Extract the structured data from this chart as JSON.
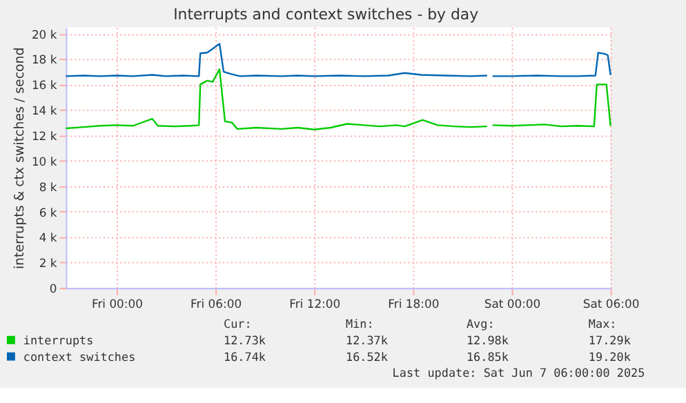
{
  "chart_data": {
    "type": "line",
    "title": "Interrupts and context switches - by day",
    "ylabel": "interrupts & ctx switches / second",
    "xlim": [
      "2025-06-05T20:55",
      "2025-06-07T06:00"
    ],
    "xticks": [
      {
        "value": "2025-06-06T00:00",
        "label": "Fri 00:00"
      },
      {
        "value": "2025-06-06T06:00",
        "label": "Fri 06:00"
      },
      {
        "value": "2025-06-06T12:00",
        "label": "Fri 12:00"
      },
      {
        "value": "2025-06-06T18:00",
        "label": "Fri 18:00"
      },
      {
        "value": "2025-06-07T00:00",
        "label": "Sat 00:00"
      },
      {
        "value": "2025-06-07T06:00",
        "label": "Sat 06:00"
      }
    ],
    "ylim": [
      0,
      20500
    ],
    "yticks": [
      {
        "value": 0,
        "label": "0"
      },
      {
        "value": 2000,
        "label": "2 k"
      },
      {
        "value": 4000,
        "label": "4 k"
      },
      {
        "value": 6000,
        "label": "6 k"
      },
      {
        "value": 8000,
        "label": "8 k"
      },
      {
        "value": 10000,
        "label": "10 k"
      },
      {
        "value": 12000,
        "label": "12 k"
      },
      {
        "value": 14000,
        "label": "14 k"
      },
      {
        "value": 16000,
        "label": "16 k"
      },
      {
        "value": 18000,
        "label": "18 k"
      },
      {
        "value": 20000,
        "label": "20 k"
      }
    ],
    "grid": true,
    "legend": "bottom",
    "marker": "none",
    "line_style": "solid",
    "series": [
      {
        "name": "interrupts",
        "color": "#00cc00",
        "x": [
          "2025-06-05T20:55",
          "2025-06-05T22:00",
          "2025-06-05T23:00",
          "2025-06-06T00:00",
          "2025-06-06T01:00",
          "2025-06-06T02:10",
          "2025-06-06T02:30",
          "2025-06-06T03:30",
          "2025-06-06T04:30",
          "2025-06-06T05:00",
          "2025-06-06T05:05",
          "2025-06-06T05:30",
          "2025-06-06T05:50",
          "2025-06-06T06:15",
          "2025-06-06T06:35",
          "2025-06-06T07:00",
          "2025-06-06T07:20",
          "2025-06-06T08:30",
          "2025-06-06T10:00",
          "2025-06-06T11:00",
          "2025-06-06T12:00",
          "2025-06-06T13:00",
          "2025-06-06T14:00",
          "2025-06-06T15:00",
          "2025-06-06T16:00",
          "2025-06-06T17:00",
          "2025-06-06T17:30",
          "2025-06-06T18:35",
          "2025-06-06T19:30",
          "2025-06-06T20:30",
          "2025-06-06T21:30",
          "2025-06-06T22:30",
          "2025-06-06T22:40",
          "2025-06-06T22:50",
          "2025-06-07T00:00",
          "2025-06-07T01:00",
          "2025-06-07T02:00",
          "2025-06-07T03:00",
          "2025-06-07T04:00",
          "2025-06-07T05:00",
          "2025-06-07T05:10",
          "2025-06-07T05:45",
          "2025-06-07T06:00"
        ],
        "values": [
          12550,
          12650,
          12750,
          12800,
          12750,
          13300,
          12750,
          12700,
          12750,
          12800,
          16000,
          16300,
          16200,
          17200,
          13100,
          13000,
          12500,
          12600,
          12500,
          12600,
          12450,
          12600,
          12900,
          12800,
          12700,
          12800,
          12700,
          13200,
          12800,
          12700,
          12650,
          12700,
          null,
          12800,
          12750,
          12800,
          12850,
          12700,
          12750,
          12700,
          16000,
          16000,
          12730
        ]
      },
      {
        "name": "context switches",
        "color": "#0066b3",
        "x": [
          "2025-06-05T20:55",
          "2025-06-05T22:00",
          "2025-06-05T23:00",
          "2025-06-06T00:00",
          "2025-06-06T01:00",
          "2025-06-06T02:10",
          "2025-06-06T03:00",
          "2025-06-06T04:00",
          "2025-06-06T05:00",
          "2025-06-06T05:05",
          "2025-06-06T05:30",
          "2025-06-06T05:50",
          "2025-06-06T06:15",
          "2025-06-06T06:30",
          "2025-06-06T07:00",
          "2025-06-06T07:30",
          "2025-06-06T08:30",
          "2025-06-06T10:00",
          "2025-06-06T11:00",
          "2025-06-06T12:00",
          "2025-06-06T13:30",
          "2025-06-06T15:00",
          "2025-06-06T16:30",
          "2025-06-06T17:30",
          "2025-06-06T18:30",
          "2025-06-06T20:00",
          "2025-06-06T21:30",
          "2025-06-06T22:30",
          "2025-06-06T22:40",
          "2025-06-06T22:50",
          "2025-06-07T00:00",
          "2025-06-07T01:30",
          "2025-06-07T03:00",
          "2025-06-07T04:00",
          "2025-06-07T05:05",
          "2025-06-07T05:15",
          "2025-06-07T05:40",
          "2025-06-07T05:50",
          "2025-06-07T06:00"
        ],
        "values": [
          16650,
          16700,
          16650,
          16700,
          16650,
          16750,
          16650,
          16700,
          16650,
          18450,
          18500,
          18800,
          19200,
          17000,
          16800,
          16650,
          16700,
          16650,
          16700,
          16650,
          16700,
          16650,
          16700,
          16900,
          16750,
          16700,
          16650,
          16700,
          null,
          16650,
          16650,
          16700,
          16650,
          16650,
          16700,
          18500,
          18400,
          18300,
          16740
        ]
      }
    ],
    "annotations": [
      "Cur:",
      "Min:",
      "Avg:",
      "Max:",
      "12.73k",
      "12.37k",
      "12.98k",
      "17.29k",
      "16.74k",
      "16.52k",
      "16.85k",
      "19.20k",
      "Last update:  Sat Jun  7 06:00:00 2025"
    ]
  }
}
